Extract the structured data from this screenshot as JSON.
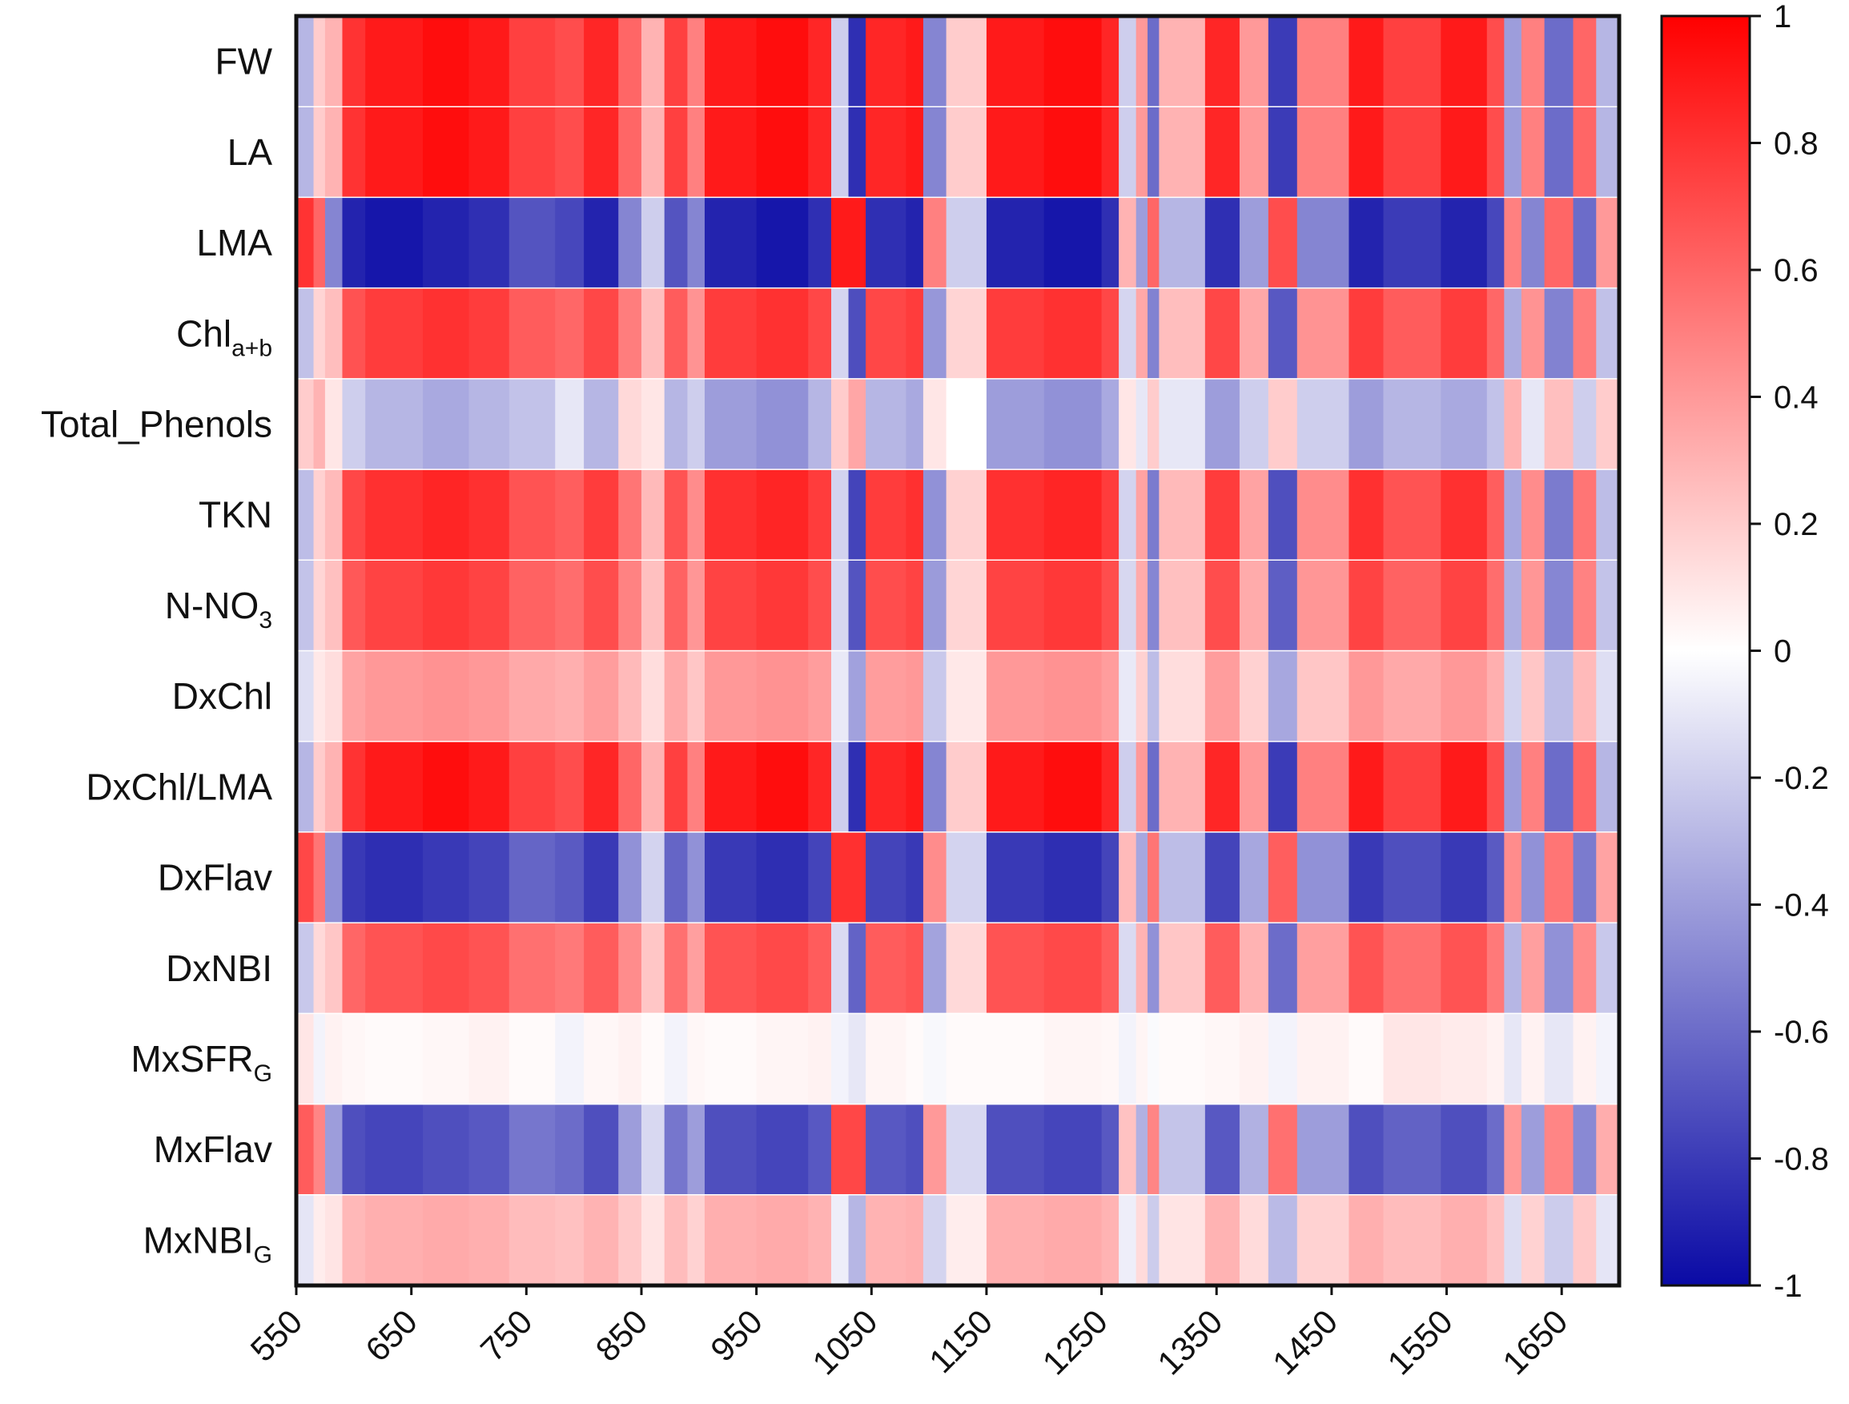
{
  "chart_data": {
    "type": "heatmap",
    "title": "",
    "xlabel": "",
    "ylabel": "",
    "x_range": [
      550,
      1700
    ],
    "x_ticks": [
      550,
      650,
      750,
      850,
      950,
      1050,
      1150,
      1250,
      1350,
      1450,
      1550,
      1650
    ],
    "rows": [
      {
        "name": "FW",
        "sub": ""
      },
      {
        "name": "LA",
        "sub": ""
      },
      {
        "name": "LMA",
        "sub": ""
      },
      {
        "name": "Chl",
        "sub": "a+b"
      },
      {
        "name": "Total_Phenols",
        "sub": ""
      },
      {
        "name": "TKN",
        "sub": ""
      },
      {
        "name": "N-NO",
        "sub": "3"
      },
      {
        "name": "DxChl",
        "sub": ""
      },
      {
        "name": "DxChl/LMA",
        "sub": ""
      },
      {
        "name": "DxFlav",
        "sub": ""
      },
      {
        "name": "DxNBI",
        "sub": ""
      },
      {
        "name": "MxSFR",
        "sub": "G"
      },
      {
        "name": "MxFlav",
        "sub": ""
      },
      {
        "name": "MxNBI",
        "sub": "G"
      }
    ],
    "segments": [
      550,
      565,
      575,
      590,
      610,
      660,
      700,
      735,
      775,
      800,
      830,
      850,
      870,
      890,
      905,
      950,
      995,
      1015,
      1030,
      1045,
      1080,
      1095,
      1115,
      1150,
      1200,
      1250,
      1265,
      1280,
      1290,
      1300,
      1340,
      1370,
      1395,
      1420,
      1465,
      1495,
      1545,
      1585,
      1600,
      1615,
      1635,
      1660,
      1680,
      1700
    ],
    "profiles": {
      "A": [
        -0.3,
        0.2,
        0.3,
        0.8,
        0.9,
        0.95,
        0.9,
        0.75,
        0.7,
        0.85,
        0.6,
        0.3,
        0.75,
        0.5,
        0.9,
        0.95,
        0.85,
        -0.2,
        -0.85,
        0.85,
        0.9,
        -0.5,
        0.2,
        0.9,
        0.95,
        0.85,
        -0.2,
        0.4,
        -0.6,
        0.3,
        0.85,
        0.4,
        -0.8,
        0.5,
        0.9,
        0.75,
        0.9,
        0.7,
        -0.4,
        0.5,
        -0.6,
        0.6,
        -0.3
      ],
      "B": [
        0.8,
        0.6,
        -0.5,
        -0.9,
        -0.95,
        -0.9,
        -0.85,
        -0.7,
        -0.75,
        -0.9,
        -0.5,
        -0.2,
        -0.7,
        -0.5,
        -0.9,
        -0.95,
        -0.85,
        0.9,
        0.9,
        -0.85,
        -0.9,
        0.5,
        -0.2,
        -0.9,
        -0.95,
        -0.85,
        0.3,
        -0.4,
        0.6,
        -0.3,
        -0.85,
        -0.4,
        0.7,
        -0.5,
        -0.9,
        -0.8,
        -0.9,
        -0.75,
        0.5,
        -0.5,
        0.6,
        -0.6,
        0.4
      ],
      "C": [
        0.2,
        0.3,
        0.1,
        -0.2,
        -0.3,
        -0.35,
        -0.3,
        -0.25,
        -0.1,
        -0.3,
        0.15,
        0.1,
        -0.3,
        -0.2,
        -0.4,
        -0.45,
        -0.3,
        0.2,
        0.35,
        -0.3,
        -0.35,
        0.1,
        0.0,
        -0.4,
        -0.45,
        -0.35,
        0.1,
        -0.1,
        0.2,
        -0.1,
        -0.4,
        -0.2,
        0.2,
        -0.2,
        -0.4,
        -0.3,
        -0.35,
        -0.25,
        0.3,
        -0.1,
        0.25,
        -0.2,
        0.2
      ],
      "D": [
        0.1,
        -0.05,
        0.05,
        0.03,
        0.02,
        0.03,
        0.05,
        0.02,
        -0.05,
        0.03,
        0.05,
        0.02,
        -0.05,
        0.03,
        0.02,
        0.04,
        0.05,
        -0.05,
        -0.1,
        0.04,
        0.02,
        -0.03,
        0.02,
        0.02,
        0.04,
        0.03,
        -0.05,
        0.04,
        -0.02,
        0.02,
        0.03,
        0.05,
        -0.05,
        0.05,
        0.02,
        0.1,
        0.08,
        0.05,
        -0.1,
        0.05,
        -0.1,
        0.05,
        -0.05
      ]
    },
    "row_map": [
      {
        "profile": "A",
        "scale": 1.0
      },
      {
        "profile": "A",
        "scale": 1.0
      },
      {
        "profile": "B",
        "scale": 1.0
      },
      {
        "profile": "A",
        "scale": 0.85
      },
      {
        "profile": "C",
        "scale": 1.0
      },
      {
        "profile": "A",
        "scale": 0.9
      },
      {
        "profile": "A",
        "scale": 0.82
      },
      {
        "profile": "A",
        "scale": 0.45
      },
      {
        "profile": "A",
        "scale": 1.0
      },
      {
        "profile": "B",
        "scale": 0.9
      },
      {
        "profile": "A",
        "scale": 0.75
      },
      {
        "profile": "D",
        "scale": 1.0
      },
      {
        "profile": "B",
        "scale": 0.8
      },
      {
        "profile": "A",
        "scale": 0.35
      }
    ],
    "colorbar": {
      "min": -1,
      "max": 1,
      "ticks": [
        "1",
        "0.8",
        "0.6",
        "0.4",
        "0.2",
        "0",
        "-0.2",
        "-0.4",
        "-0.6",
        "-0.8",
        "-1"
      ],
      "colors": {
        "low": "#0a0aa5",
        "mid": "#ffffff",
        "high": "#ff0000"
      }
    }
  }
}
